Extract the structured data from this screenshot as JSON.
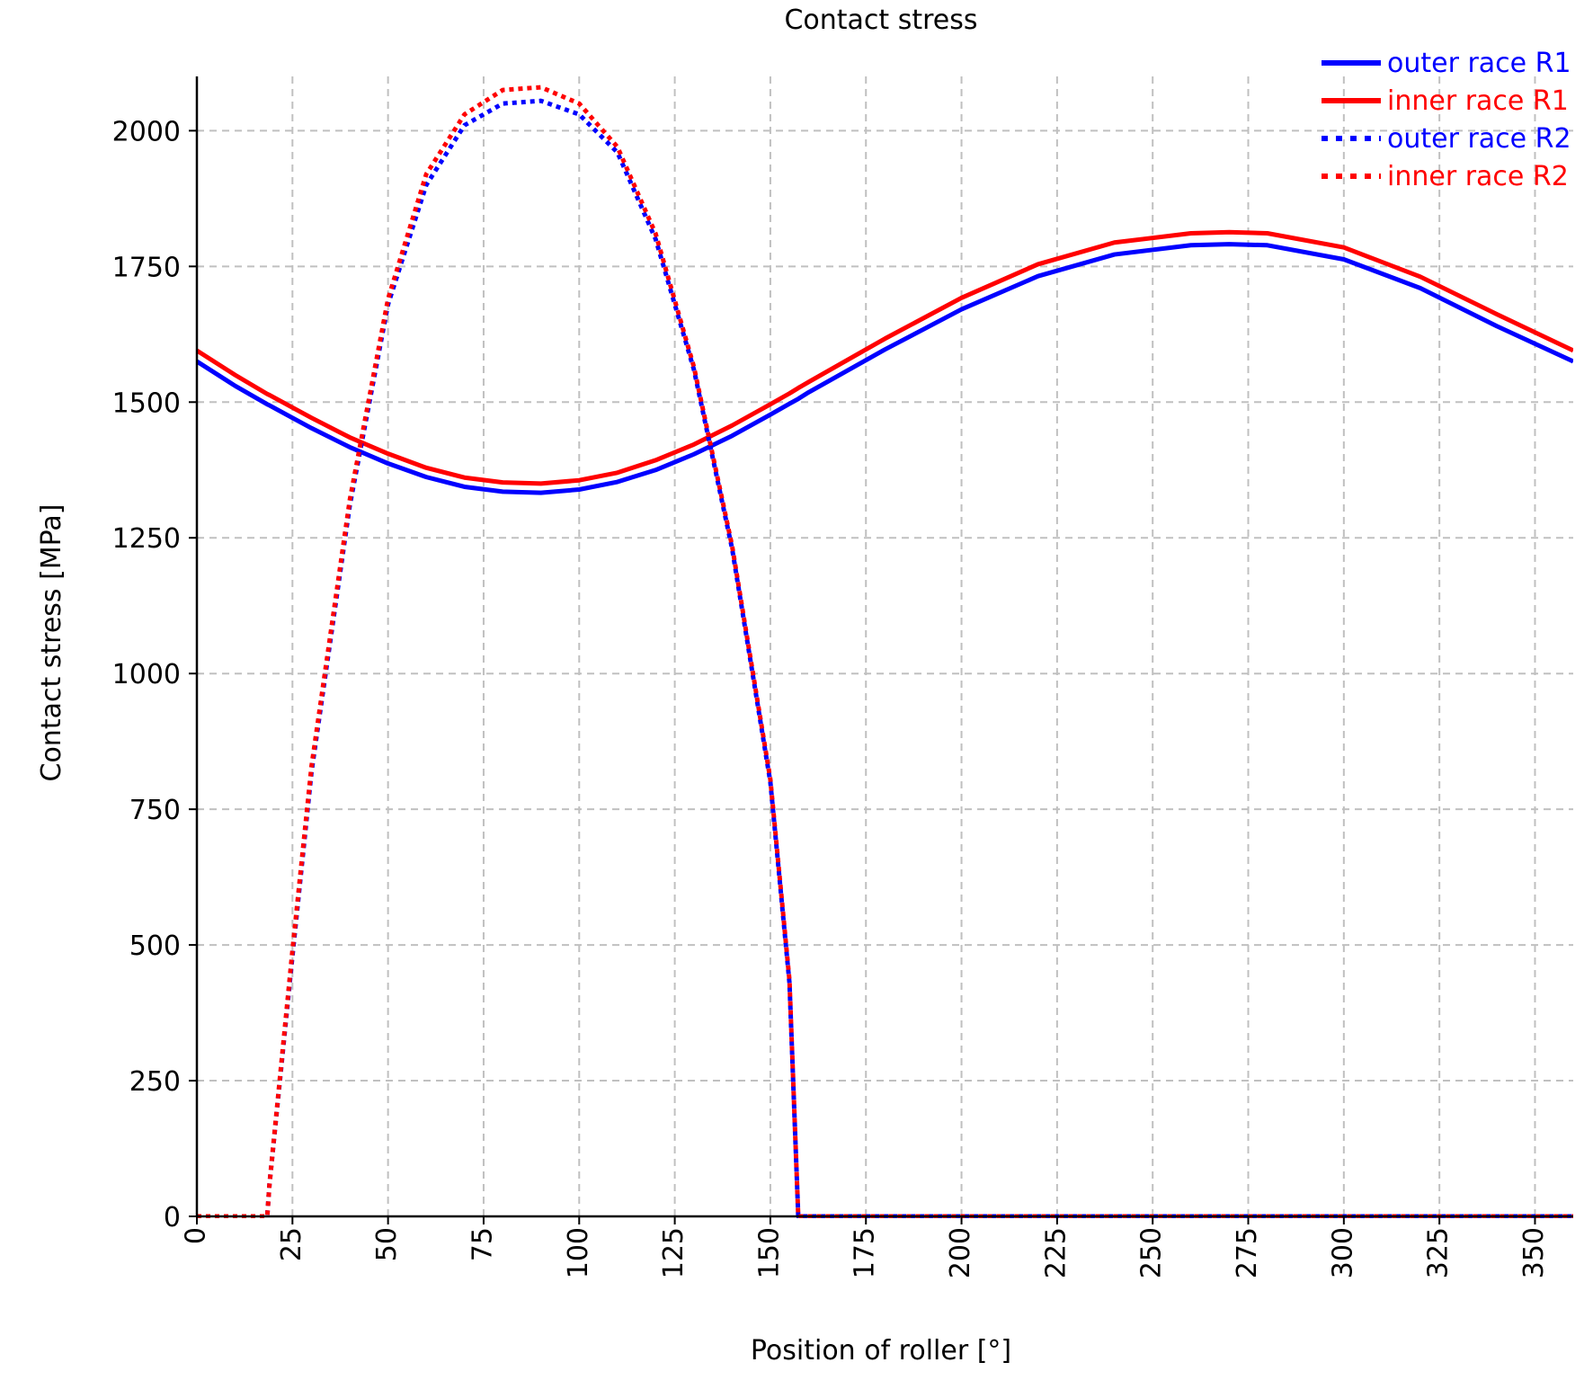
{
  "chart_data": {
    "type": "line",
    "title": "Contact stress",
    "xlabel": "Position of roller [°]",
    "ylabel": "Contact stress [MPa]",
    "xlim": [
      0,
      360
    ],
    "ylim": [
      0,
      2100
    ],
    "xticks": [
      0,
      25,
      50,
      75,
      100,
      125,
      150,
      175,
      200,
      225,
      250,
      275,
      300,
      325,
      350
    ],
    "yticks": [
      0,
      250,
      500,
      750,
      1000,
      1250,
      1500,
      1750,
      2000
    ],
    "grid": true,
    "legend_position": "top-right",
    "x": [
      0,
      10,
      18.4,
      19,
      25,
      30,
      40,
      50,
      60,
      70,
      80,
      90,
      100,
      110,
      120,
      130,
      140,
      150,
      155,
      157.3,
      160,
      180,
      200,
      220,
      240,
      260,
      270,
      280,
      300,
      320,
      340,
      360
    ],
    "series": [
      {
        "name": "outer race R1",
        "color": "#0000ff",
        "style": "solid",
        "values": [
          1575,
          1530,
          1496,
          1494,
          1471,
          1452,
          1417,
          1387,
          1362,
          1344,
          1335,
          1333,
          1339,
          1353,
          1375,
          1404,
          1438,
          1477,
          1497,
          1506,
          1518,
          1597,
          1671,
          1732,
          1772,
          1789,
          1791,
          1789,
          1763,
          1710,
          1640,
          1575
        ]
      },
      {
        "name": "inner race R1",
        "color": "#ff0000",
        "style": "solid",
        "values": [
          1595,
          1550,
          1515,
          1513,
          1490,
          1471,
          1435,
          1405,
          1379,
          1361,
          1352,
          1350,
          1356,
          1370,
          1393,
          1422,
          1457,
          1496,
          1516,
          1526,
          1537,
          1617,
          1692,
          1754,
          1794,
          1811,
          1813,
          1811,
          1785,
          1731,
          1662,
          1595
        ]
      },
      {
        "name": "outer race R2",
        "color": "#0000ff",
        "style": "dotted",
        "values": [
          0,
          0,
          0,
          60,
          480,
          820,
          1310,
          1680,
          1900,
          2010,
          2050,
          2055,
          2030,
          1960,
          1800,
          1560,
          1230,
          800,
          430,
          0,
          0,
          0,
          0,
          0,
          0,
          0,
          0,
          0,
          0,
          0,
          0,
          0
        ]
      },
      {
        "name": "inner race R2",
        "color": "#ff0000",
        "style": "dotted",
        "values": [
          0,
          0,
          0,
          60,
          490,
          830,
          1320,
          1690,
          1920,
          2030,
          2075,
          2080,
          2050,
          1970,
          1810,
          1565,
          1235,
          805,
          435,
          0,
          0,
          0,
          0,
          0,
          0,
          0,
          0,
          0,
          0,
          0,
          0,
          0
        ]
      }
    ]
  }
}
